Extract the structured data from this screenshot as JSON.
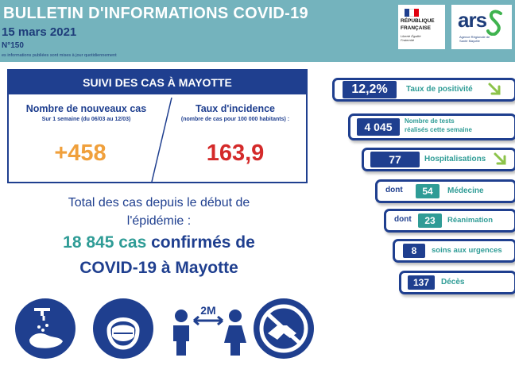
{
  "header": {
    "title": "BULLETIN D'INFORMATIONS COVID-19",
    "date": "15 mars 2021",
    "number": "N°150",
    "note": "es informations publiées sont mises à jour quotidiennement",
    "republique_line1": "RÉPUBLIQUE",
    "republique_line2": "FRANÇAISE",
    "republique_motto": "Liberté Égalité Fraternité",
    "ars_logo": "ars",
    "ars_sub": "Agence Régionale de Santé Mayotte"
  },
  "suivi": {
    "title": "SUIVI DES CAS À MAYOTTE",
    "left_title": "Nombre de nouveaux cas",
    "left_sub": "Sur 1 semaine (du 06/03 au 12/03)",
    "left_value": "+458",
    "right_title": "Taux d'incidence",
    "right_sub": "(nombre de cas pour 100 000 habitants) :",
    "right_value": "163,9"
  },
  "total": {
    "line1": "Total des cas depuis le début de",
    "line2": "l'épidémie :",
    "count": "18 845 cas",
    "rest": "confirmés de",
    "line4": "COVID-19 à Mayotte"
  },
  "indicators": {
    "positivite_value": "12,2%",
    "positivite_label": "Taux de positivité",
    "tests_value": "4 045",
    "tests_label_1": "Nombre de tests",
    "tests_label_2": "réalisés cette semaine",
    "hosp_value": "77",
    "hosp_label": "Hospitalisations",
    "dont": "dont",
    "medecine_value": "54",
    "medecine_label": "Médecine",
    "rea_value": "23",
    "rea_label": "Réanimation",
    "urgences_value": "8",
    "urgences_label": "soins aux urgences",
    "deces_value": "137",
    "deces_label": "Décès"
  },
  "gestures": {
    "distance_label": "2M",
    "icons": [
      "hand-washing-icon",
      "mask-icon",
      "distance-icon",
      "no-handshake-icon"
    ]
  },
  "colors": {
    "header": "#74b3bd",
    "navy": "#1f3f8f",
    "teal": "#2f9c96",
    "orange": "#f0a03c",
    "red": "#d42a2a",
    "arrow_green": "#8cc34a"
  }
}
